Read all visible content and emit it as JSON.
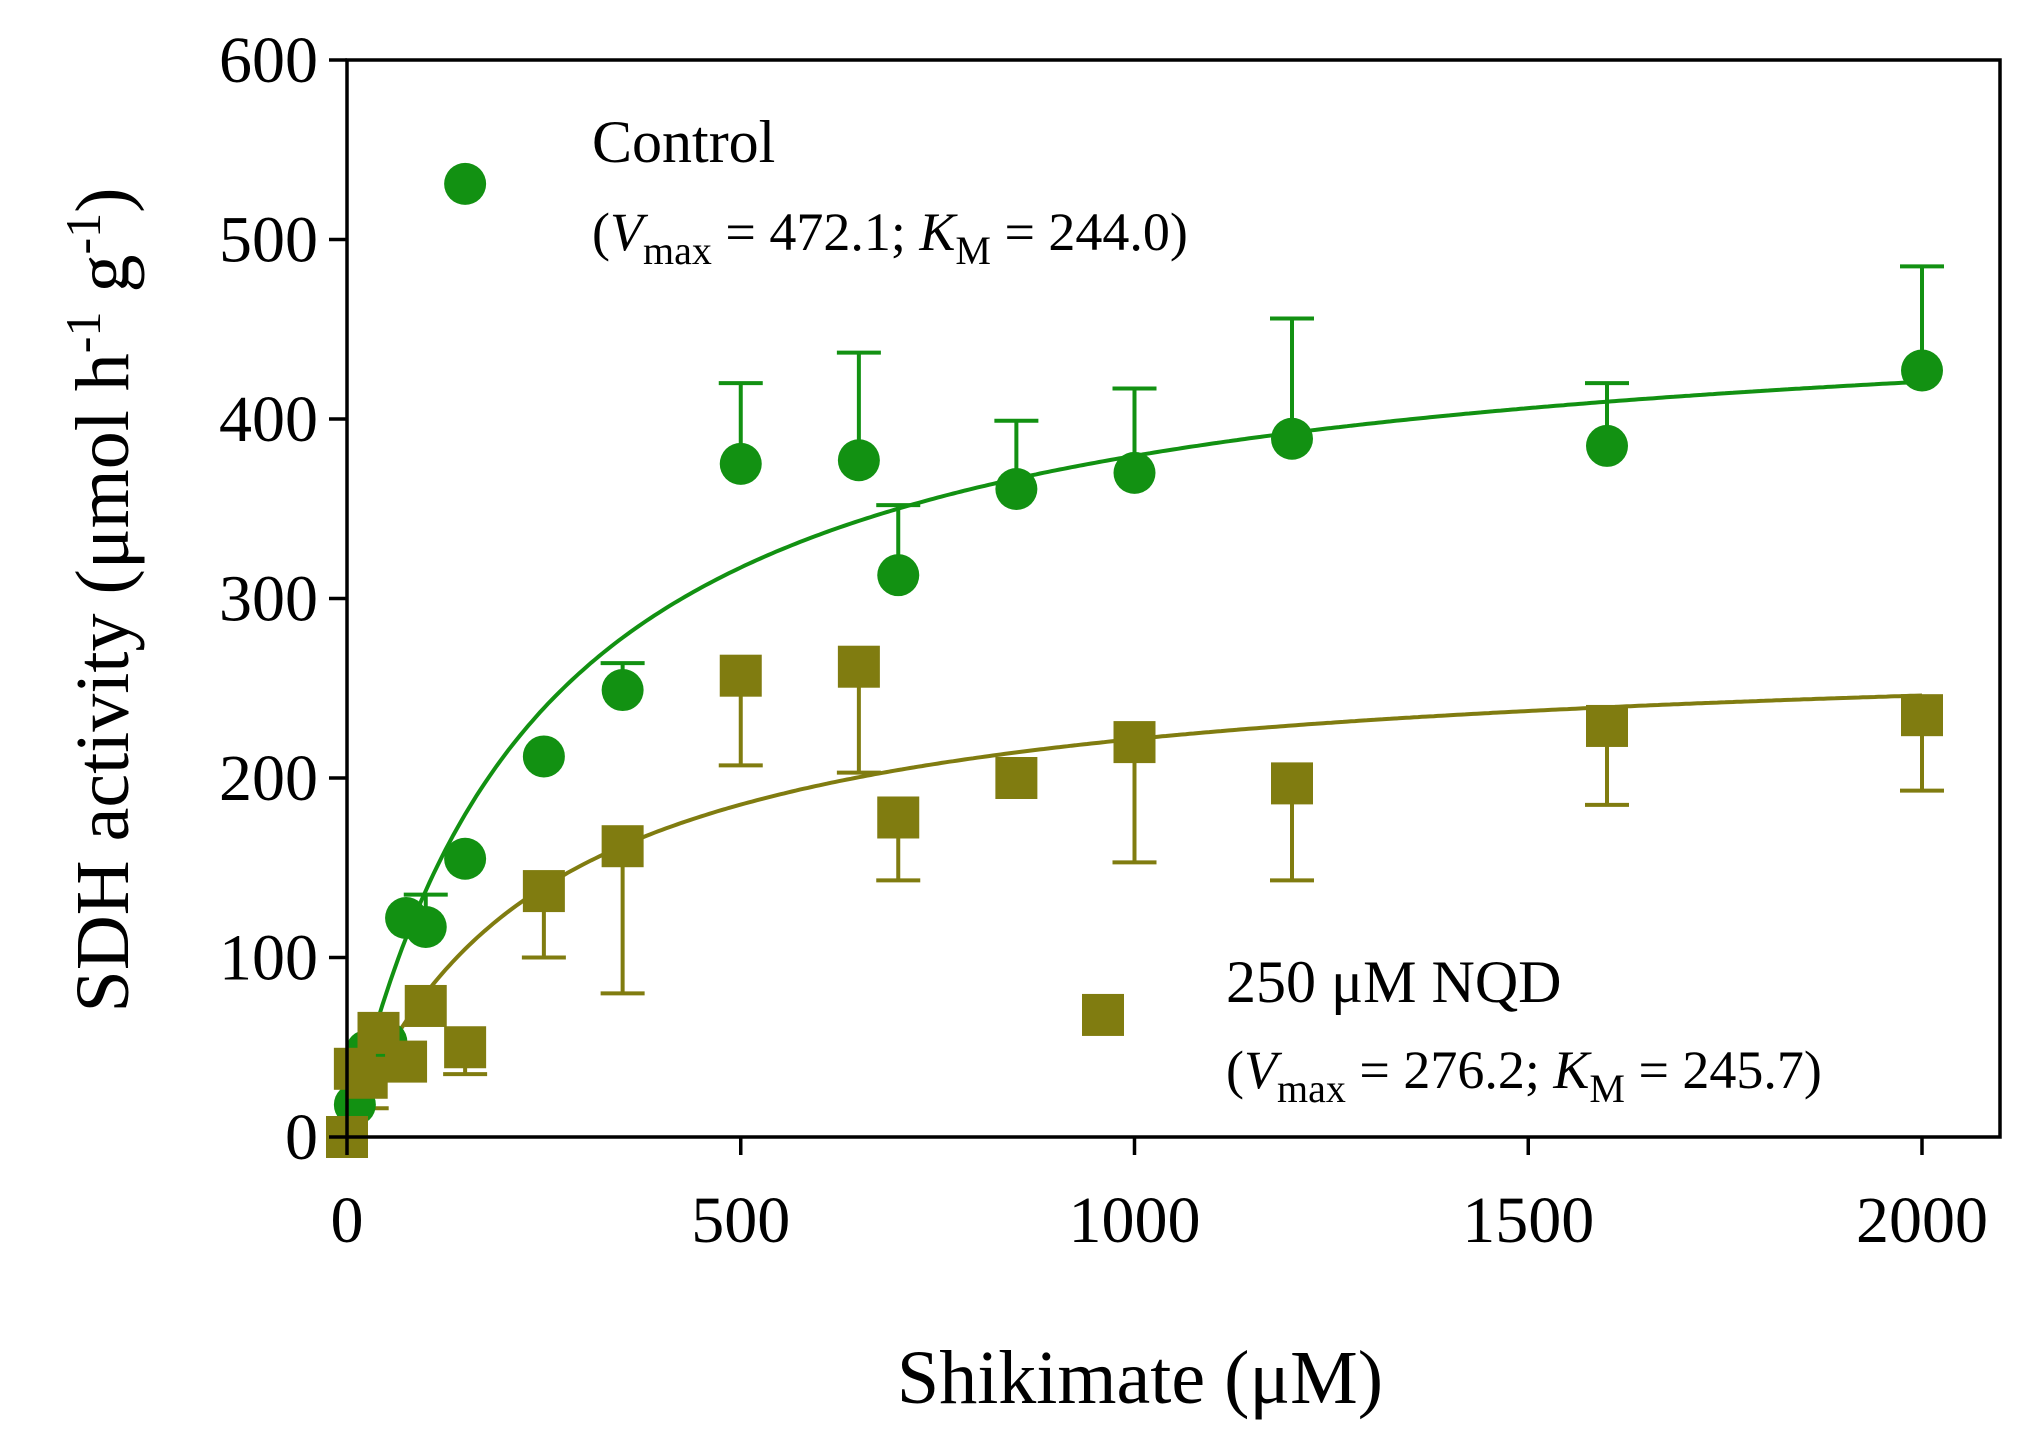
{
  "chart_data": {
    "type": "scatter",
    "xlabel": "Shikimate (μM)",
    "ylabel": "SDH activity (μmol h-1 g-1)",
    "ylabel_parts": {
      "main": "SDH activity (μmol h",
      "sup1": "-1",
      "mid": " g",
      "sup2": "-1",
      "end": ")"
    },
    "xlim": [
      0,
      2000
    ],
    "ylim": [
      0,
      600
    ],
    "x_ticks": [
      0,
      500,
      1000,
      1500,
      2000
    ],
    "y_ticks": [
      0,
      100,
      200,
      300,
      400,
      500,
      600
    ],
    "x_tick_labels": [
      "0",
      "500",
      "1000",
      "1500",
      "2000"
    ],
    "y_tick_labels": [
      "0",
      "100",
      "200",
      "300",
      "400",
      "500",
      "600"
    ],
    "grid": false,
    "series": [
      {
        "name": "Control",
        "marker": "circle",
        "color": "#129112",
        "fit": {
          "model": "michaelis-menten",
          "vmax": 472.1,
          "km": 244.0
        },
        "legend": {
          "title": "Control",
          "open": "(",
          "v_sym": "V",
          "v_sub": "max",
          "v_eq": " = 472.1; ",
          "k_sym": "K",
          "k_sub": "M",
          "k_eq": " = 244.0)"
        },
        "points": [
          {
            "x": 0,
            "y": 0
          },
          {
            "x": 10,
            "y": 18
          },
          {
            "x": 25,
            "y": 48
          },
          {
            "x": 50,
            "y": 53
          },
          {
            "x": 75,
            "y": 122
          },
          {
            "x": 100,
            "y": 117,
            "err": 135
          },
          {
            "x": 150,
            "y": 155
          },
          {
            "x": 250,
            "y": 212
          },
          {
            "x": 350,
            "y": 249,
            "err": 264
          },
          {
            "x": 500,
            "y": 375,
            "err": 420
          },
          {
            "x": 650,
            "y": 377,
            "err": 437
          },
          {
            "x": 700,
            "y": 313,
            "err": 352
          },
          {
            "x": 850,
            "y": 361,
            "err": 399
          },
          {
            "x": 1000,
            "y": 370,
            "err": 417
          },
          {
            "x": 1200,
            "y": 389,
            "err": 456
          },
          {
            "x": 1600,
            "y": 385,
            "err": 420
          },
          {
            "x": 2000,
            "y": 427,
            "err": 485
          }
        ],
        "outlier": {
          "x": 150,
          "y": 531
        }
      },
      {
        "name": "250 μM NQD",
        "marker": "square",
        "color": "#807c10",
        "fit": {
          "model": "michaelis-menten",
          "vmax": 276.2,
          "km": 245.7
        },
        "legend": {
          "title": "250 μM NQD",
          "open": "(",
          "v_sym": "V",
          "v_sub": "max",
          "v_eq": " = 276.2; ",
          "k_sym": "K",
          "k_sub": "M",
          "k_eq": " = 245.7)"
        },
        "points": [
          {
            "x": 0,
            "y": 0
          },
          {
            "x": 10,
            "y": 38
          },
          {
            "x": 25,
            "y": 33,
            "err": 16
          },
          {
            "x": 40,
            "y": 58
          },
          {
            "x": 75,
            "y": 42
          },
          {
            "x": 100,
            "y": 73
          },
          {
            "x": 150,
            "y": 50,
            "err": 35
          },
          {
            "x": 250,
            "y": 137,
            "err": 100
          },
          {
            "x": 350,
            "y": 162,
            "err": 80
          },
          {
            "x": 500,
            "y": 257,
            "err": 207
          },
          {
            "x": 650,
            "y": 262,
            "err": 203
          },
          {
            "x": 700,
            "y": 178,
            "err": 143
          },
          {
            "x": 850,
            "y": 200
          },
          {
            "x": 1000,
            "y": 220,
            "err": 153
          },
          {
            "x": 1200,
            "y": 197,
            "err": 143
          },
          {
            "x": 1600,
            "y": 229,
            "err": 185
          },
          {
            "x": 2000,
            "y": 235,
            "err": 193
          }
        ],
        "outlier": {
          "x": 960,
          "y": 68
        }
      }
    ]
  }
}
